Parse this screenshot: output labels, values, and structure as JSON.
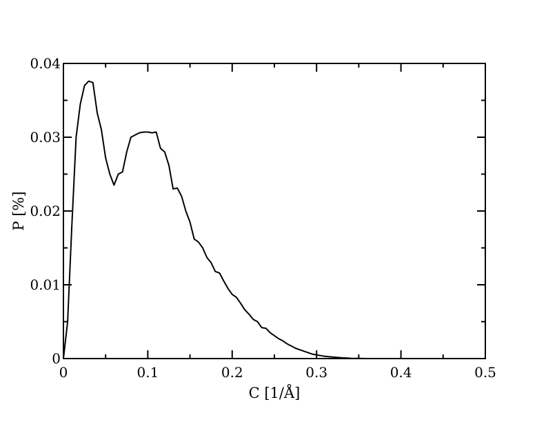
{
  "chart_data": {
    "type": "line",
    "xlabel": "C [1/Å]",
    "ylabel": "P [%]",
    "xlim": [
      0,
      0.5
    ],
    "ylim": [
      0,
      0.04
    ],
    "xticks": [
      0,
      0.1,
      0.2,
      0.3,
      0.4,
      0.5
    ],
    "xtick_labels": [
      "0",
      "0.1",
      "0.2",
      "0.3",
      "0.4",
      "0.5"
    ],
    "yticks": [
      0,
      0.01,
      0.02,
      0.03,
      0.04
    ],
    "ytick_labels": [
      "0",
      "0.01",
      "0.02",
      "0.03",
      "0.04"
    ],
    "grid": false,
    "legend": "none",
    "series": [
      {
        "color": "#000000",
        "x": [
          0,
          0.005,
          0.01,
          0.015,
          0.02,
          0.025,
          0.03,
          0.035,
          0.04,
          0.045,
          0.05,
          0.055,
          0.06,
          0.065,
          0.07,
          0.075,
          0.08,
          0.085,
          0.09,
          0.095,
          0.1,
          0.105,
          0.11,
          0.115,
          0.12,
          0.125,
          0.13,
          0.135,
          0.14,
          0.145,
          0.15,
          0.155,
          0.16,
          0.165,
          0.17,
          0.175,
          0.18,
          0.185,
          0.19,
          0.195,
          0.2,
          0.205,
          0.21,
          0.215,
          0.22,
          0.225,
          0.23,
          0.235,
          0.24,
          0.245,
          0.25,
          0.255,
          0.26,
          0.265,
          0.27,
          0.275,
          0.28,
          0.285,
          0.29,
          0.295,
          0.3,
          0.31,
          0.32,
          0.33,
          0.34,
          0.35,
          0.36,
          0.365
        ],
        "y": [
          0,
          0.005,
          0.018,
          0.03,
          0.0345,
          0.037,
          0.0376,
          0.0374,
          0.0333,
          0.031,
          0.0272,
          0.025,
          0.0235,
          0.025,
          0.0253,
          0.028,
          0.03,
          0.0303,
          0.0306,
          0.0307,
          0.0307,
          0.0306,
          0.0307,
          0.0285,
          0.028,
          0.0262,
          0.023,
          0.0231,
          0.022,
          0.02,
          0.0185,
          0.0162,
          0.0158,
          0.015,
          0.0137,
          0.013,
          0.0118,
          0.0116,
          0.0105,
          0.0095,
          0.0087,
          0.0083,
          0.0075,
          0.0066,
          0.006,
          0.0053,
          0.005,
          0.0042,
          0.0041,
          0.0035,
          0.0031,
          0.0027,
          0.0024,
          0.002,
          0.0017,
          0.0014,
          0.0012,
          0.001,
          0.0008,
          0.0006,
          0.0005,
          0.0003,
          0.0002,
          0.0001,
          5e-05,
          2e-05,
          0,
          0
        ]
      }
    ]
  }
}
